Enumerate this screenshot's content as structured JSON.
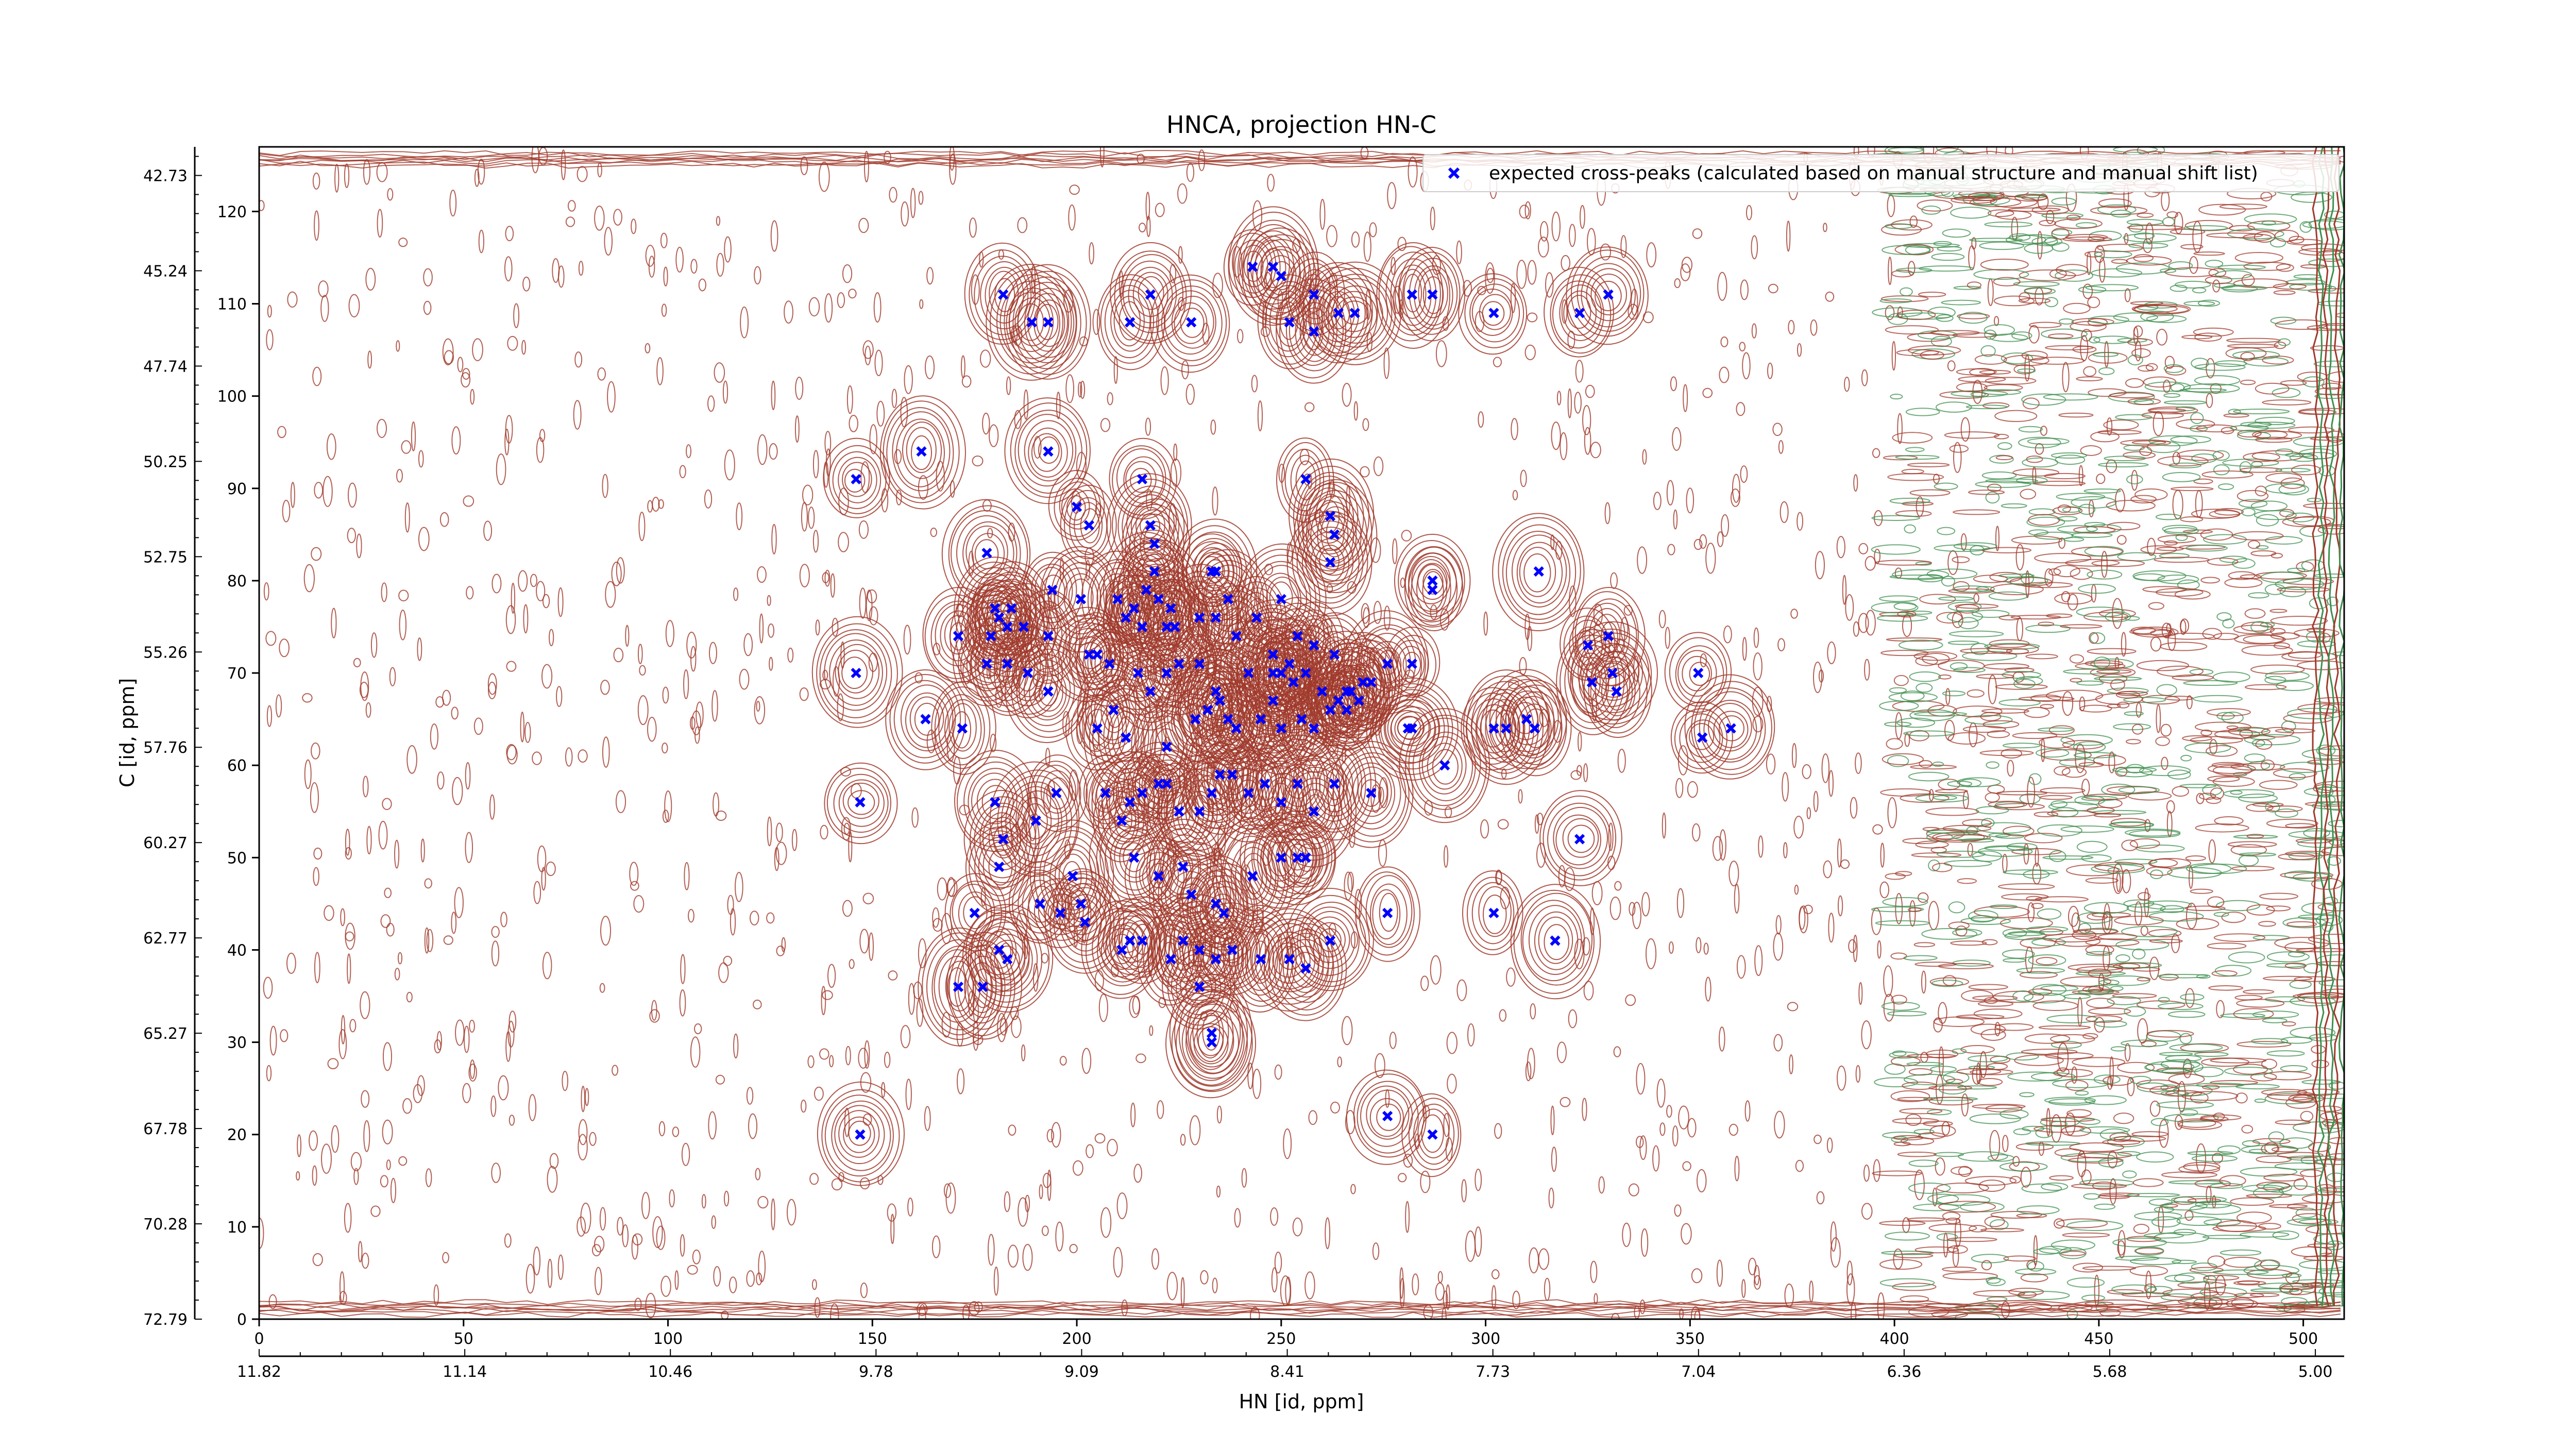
{
  "chart_data": {
    "type": "scatter",
    "title": "HNCA, projection HN-C",
    "xlabel": "HN [id, ppm]",
    "ylabel": "C [id, ppm]",
    "x_index_range": [
      0,
      510
    ],
    "y_index_range": [
      0,
      127
    ],
    "x_index_ticks": [
      "0",
      "50",
      "100",
      "150",
      "200",
      "250",
      "300",
      "350",
      "400",
      "450",
      "500"
    ],
    "x_ppm_ticks": [
      "11.82",
      "11.14",
      "10.46",
      "9.78",
      "9.09",
      "8.41",
      "7.73",
      "7.04",
      "6.36",
      "5.68",
      "5.00"
    ],
    "y_index_ticks": [
      "0",
      "10",
      "20",
      "30",
      "40",
      "50",
      "60",
      "70",
      "80",
      "90",
      "100",
      "110",
      "120"
    ],
    "y_ppm_ticks": [
      "72.79",
      "70.28",
      "67.78",
      "65.27",
      "62.77",
      "60.27",
      "57.76",
      "55.26",
      "52.75",
      "50.25",
      "47.74",
      "45.24",
      "42.73"
    ],
    "legend_position": "top-right",
    "contour_colors": {
      "positive": "#a0392b",
      "negative": "#3f8f4f"
    },
    "series": [
      {
        "name": "expected cross-peaks (calculated based on manual structure and manual shift list)",
        "color": "#0000ff",
        "marker": "x",
        "points": [
          [
            182,
            111
          ],
          [
            189,
            108
          ],
          [
            193,
            108
          ],
          [
            213,
            108
          ],
          [
            218,
            111
          ],
          [
            228,
            108
          ],
          [
            243,
            114
          ],
          [
            248,
            114
          ],
          [
            250,
            113
          ],
          [
            252,
            108
          ],
          [
            258,
            111
          ],
          [
            258,
            107
          ],
          [
            264,
            109
          ],
          [
            268,
            109
          ],
          [
            282,
            111
          ],
          [
            287,
            111
          ],
          [
            302,
            109
          ],
          [
            323,
            109
          ],
          [
            330,
            111
          ],
          [
            146,
            91
          ],
          [
            162,
            94
          ],
          [
            193,
            94
          ],
          [
            200,
            88
          ],
          [
            203,
            86
          ],
          [
            216,
            91
          ],
          [
            218,
            86
          ],
          [
            219,
            84
          ],
          [
            219,
            81
          ],
          [
            217,
            79
          ],
          [
            233,
            81
          ],
          [
            234,
            81
          ],
          [
            256,
            91
          ],
          [
            262,
            87
          ],
          [
            263,
            85
          ],
          [
            262,
            82
          ],
          [
            287,
            80
          ],
          [
            313,
            81
          ],
          [
            178,
            83
          ],
          [
            171,
            74
          ],
          [
            179,
            74
          ],
          [
            180,
            77
          ],
          [
            181,
            76
          ],
          [
            183,
            75
          ],
          [
            184,
            77
          ],
          [
            187,
            75
          ],
          [
            193,
            74
          ],
          [
            194,
            79
          ],
          [
            201,
            78
          ],
          [
            210,
            78
          ],
          [
            212,
            76
          ],
          [
            214,
            77
          ],
          [
            216,
            75
          ],
          [
            220,
            78
          ],
          [
            222,
            75
          ],
          [
            223,
            77
          ],
          [
            224,
            75
          ],
          [
            230,
            76
          ],
          [
            234,
            76
          ],
          [
            237,
            78
          ],
          [
            239,
            74
          ],
          [
            244,
            76
          ],
          [
            250,
            78
          ],
          [
            248,
            72
          ],
          [
            252,
            71
          ],
          [
            254,
            74
          ],
          [
            258,
            73
          ],
          [
            263,
            72
          ],
          [
            267,
            68
          ],
          [
            270,
            69
          ],
          [
            272,
            69
          ],
          [
            276,
            71
          ],
          [
            282,
            71
          ],
          [
            287,
            79
          ],
          [
            178,
            71
          ],
          [
            183,
            71
          ],
          [
            188,
            70
          ],
          [
            193,
            68
          ],
          [
            203,
            72
          ],
          [
            205,
            72
          ],
          [
            208,
            71
          ],
          [
            215,
            70
          ],
          [
            218,
            68
          ],
          [
            222,
            70
          ],
          [
            225,
            71
          ],
          [
            230,
            71
          ],
          [
            234,
            68
          ],
          [
            237,
            65
          ],
          [
            242,
            70
          ],
          [
            248,
            70
          ],
          [
            250,
            70
          ],
          [
            253,
            69
          ],
          [
            256,
            70
          ],
          [
            260,
            68
          ],
          [
            264,
            67
          ],
          [
            266,
            68
          ],
          [
            269,
            67
          ],
          [
            325,
            73
          ],
          [
            326,
            69
          ],
          [
            330,
            74
          ],
          [
            331,
            70
          ],
          [
            332,
            68
          ],
          [
            352,
            70
          ],
          [
            353,
            63
          ],
          [
            360,
            64
          ],
          [
            146,
            70
          ],
          [
            163,
            65
          ],
          [
            172,
            64
          ],
          [
            205,
            64
          ],
          [
            209,
            66
          ],
          [
            212,
            63
          ],
          [
            222,
            62
          ],
          [
            229,
            65
          ],
          [
            232,
            66
          ],
          [
            235,
            67
          ],
          [
            239,
            64
          ],
          [
            245,
            65
          ],
          [
            248,
            67
          ],
          [
            250,
            64
          ],
          [
            255,
            65
          ],
          [
            258,
            64
          ],
          [
            262,
            66
          ],
          [
            266,
            66
          ],
          [
            282,
            64
          ],
          [
            302,
            64
          ],
          [
            305,
            64
          ],
          [
            310,
            65
          ],
          [
            312,
            64
          ],
          [
            147,
            56
          ],
          [
            180,
            56
          ],
          [
            182,
            52
          ],
          [
            181,
            49
          ],
          [
            190,
            54
          ],
          [
            195,
            57
          ],
          [
            207,
            57
          ],
          [
            211,
            54
          ],
          [
            213,
            56
          ],
          [
            216,
            57
          ],
          [
            220,
            58
          ],
          [
            222,
            58
          ],
          [
            225,
            55
          ],
          [
            230,
            55
          ],
          [
            233,
            57
          ],
          [
            235,
            59
          ],
          [
            238,
            59
          ],
          [
            242,
            57
          ],
          [
            246,
            58
          ],
          [
            250,
            56
          ],
          [
            254,
            58
          ],
          [
            258,
            55
          ],
          [
            263,
            58
          ],
          [
            272,
            57
          ],
          [
            281,
            64
          ],
          [
            290,
            60
          ],
          [
            323,
            52
          ],
          [
            199,
            48
          ],
          [
            201,
            45
          ],
          [
            191,
            45
          ],
          [
            214,
            50
          ],
          [
            220,
            48
          ],
          [
            226,
            49
          ],
          [
            228,
            46
          ],
          [
            234,
            45
          ],
          [
            236,
            44
          ],
          [
            243,
            48
          ],
          [
            250,
            50
          ],
          [
            254,
            50
          ],
          [
            256,
            50
          ],
          [
            276,
            44
          ],
          [
            302,
            44
          ],
          [
            317,
            41
          ],
          [
            171,
            36
          ],
          [
            177,
            36
          ],
          [
            183,
            39
          ],
          [
            202,
            43
          ],
          [
            211,
            40
          ],
          [
            213,
            41
          ],
          [
            216,
            41
          ],
          [
            223,
            39
          ],
          [
            226,
            41
          ],
          [
            230,
            40
          ],
          [
            234,
            39
          ],
          [
            238,
            40
          ],
          [
            245,
            39
          ],
          [
            252,
            39
          ],
          [
            256,
            38
          ],
          [
            262,
            41
          ],
          [
            175,
            44
          ],
          [
            181,
            40
          ],
          [
            196,
            44
          ],
          [
            230,
            36
          ],
          [
            233,
            31
          ],
          [
            233,
            30
          ],
          [
            147,
            20
          ],
          [
            276,
            22
          ],
          [
            287,
            20
          ]
        ]
      }
    ]
  }
}
